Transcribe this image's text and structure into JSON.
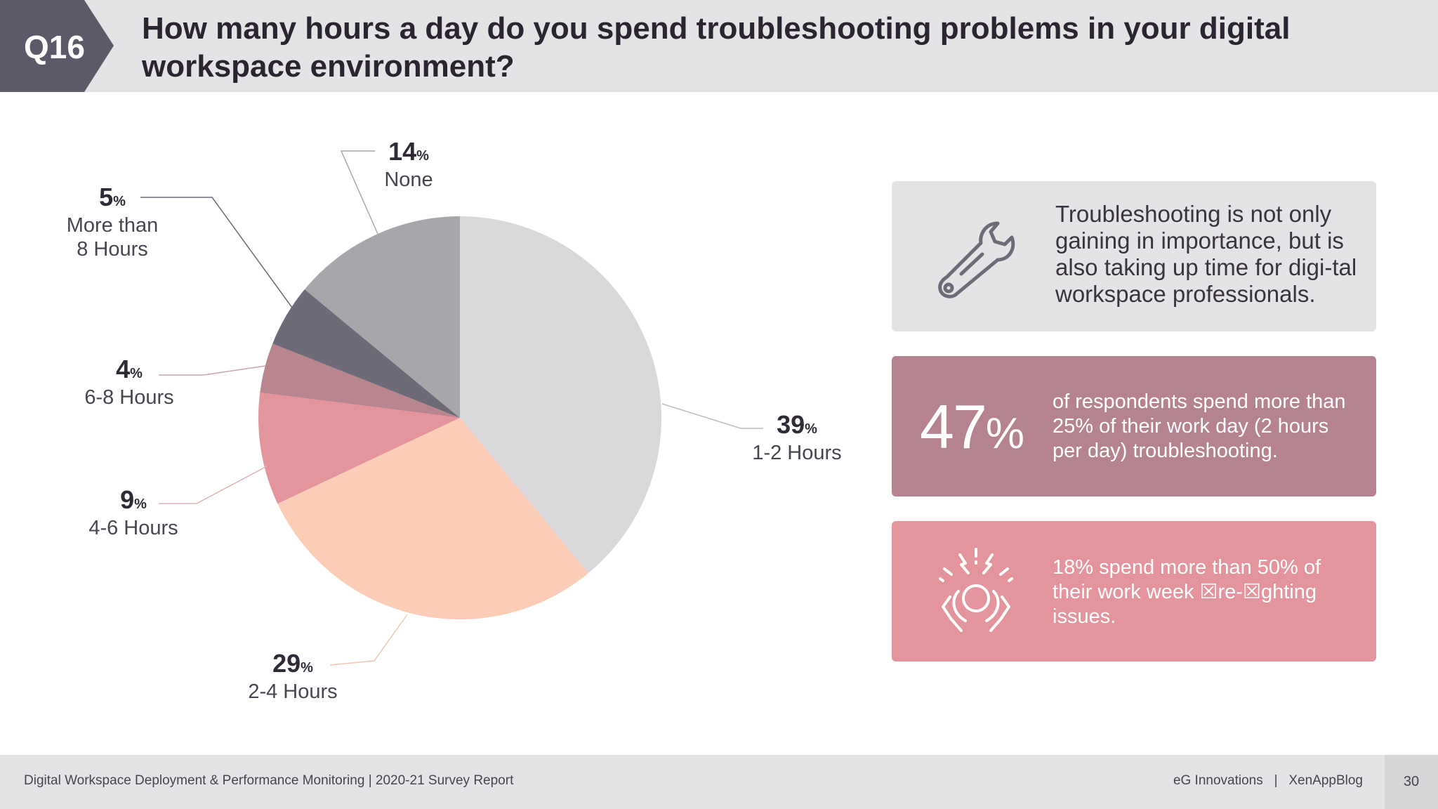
{
  "header": {
    "badge": "Q16",
    "title": "How many hours a day do you spend troubleshooting problems in your digital workspace environment?"
  },
  "chart_data": {
    "type": "pie",
    "title": "How many hours a day do you spend troubleshooting problems in your digital workspace environment?",
    "slices": [
      {
        "label": "1-2 Hours",
        "value": 39,
        "color": "#d9d8da"
      },
      {
        "label": "2-4 Hours",
        "value": 29,
        "color": "#fbcdb6"
      },
      {
        "label": "4-6 Hours",
        "value": 9,
        "color": "#e4949c"
      },
      {
        "label": "6-8 Hours",
        "value": 4,
        "color": "#b98690"
      },
      {
        "label": "More than 8 Hours",
        "value": 5,
        "color": "#6f6a78"
      },
      {
        "label": "None",
        "value": 14,
        "color": "#a8a6aa"
      }
    ],
    "unit": "%"
  },
  "labels": {
    "l1": {
      "pct": "39",
      "name": "1-2 Hours"
    },
    "l2": {
      "pct": "29",
      "name": "2-4 Hours"
    },
    "l3": {
      "pct": "9",
      "name": "4-6 Hours"
    },
    "l4": {
      "pct": "4",
      "name": "6-8 Hours"
    },
    "l5": {
      "pct": "5",
      "name1": "More than",
      "name2": "8 Hours"
    },
    "l6": {
      "pct": "14",
      "name": "None"
    },
    "pct_sign": "%"
  },
  "cards": {
    "card1_text": "Troubleshooting is not only gaining in importance, but is also taking up time for digi-tal workspace professionals.",
    "card2_big": "47",
    "card2_big_sign": "%",
    "card2_text": "of respondents spend more than 25% of their work day (2 hours per day) troubleshooting.",
    "card3_text": "18% spend more than 50% of their work week ☒re-☒ghting issues."
  },
  "footer": {
    "left": "Digital Workspace Deployment & Performance Monitoring | 2020-21 Survey Report",
    "right": "eG Innovations   |   XenAppBlog",
    "page": "30"
  },
  "colors": {
    "header_bg": "#e4e3e5",
    "badge": "#5e5968",
    "card2": "#b58290",
    "card3": "#e4949c"
  }
}
